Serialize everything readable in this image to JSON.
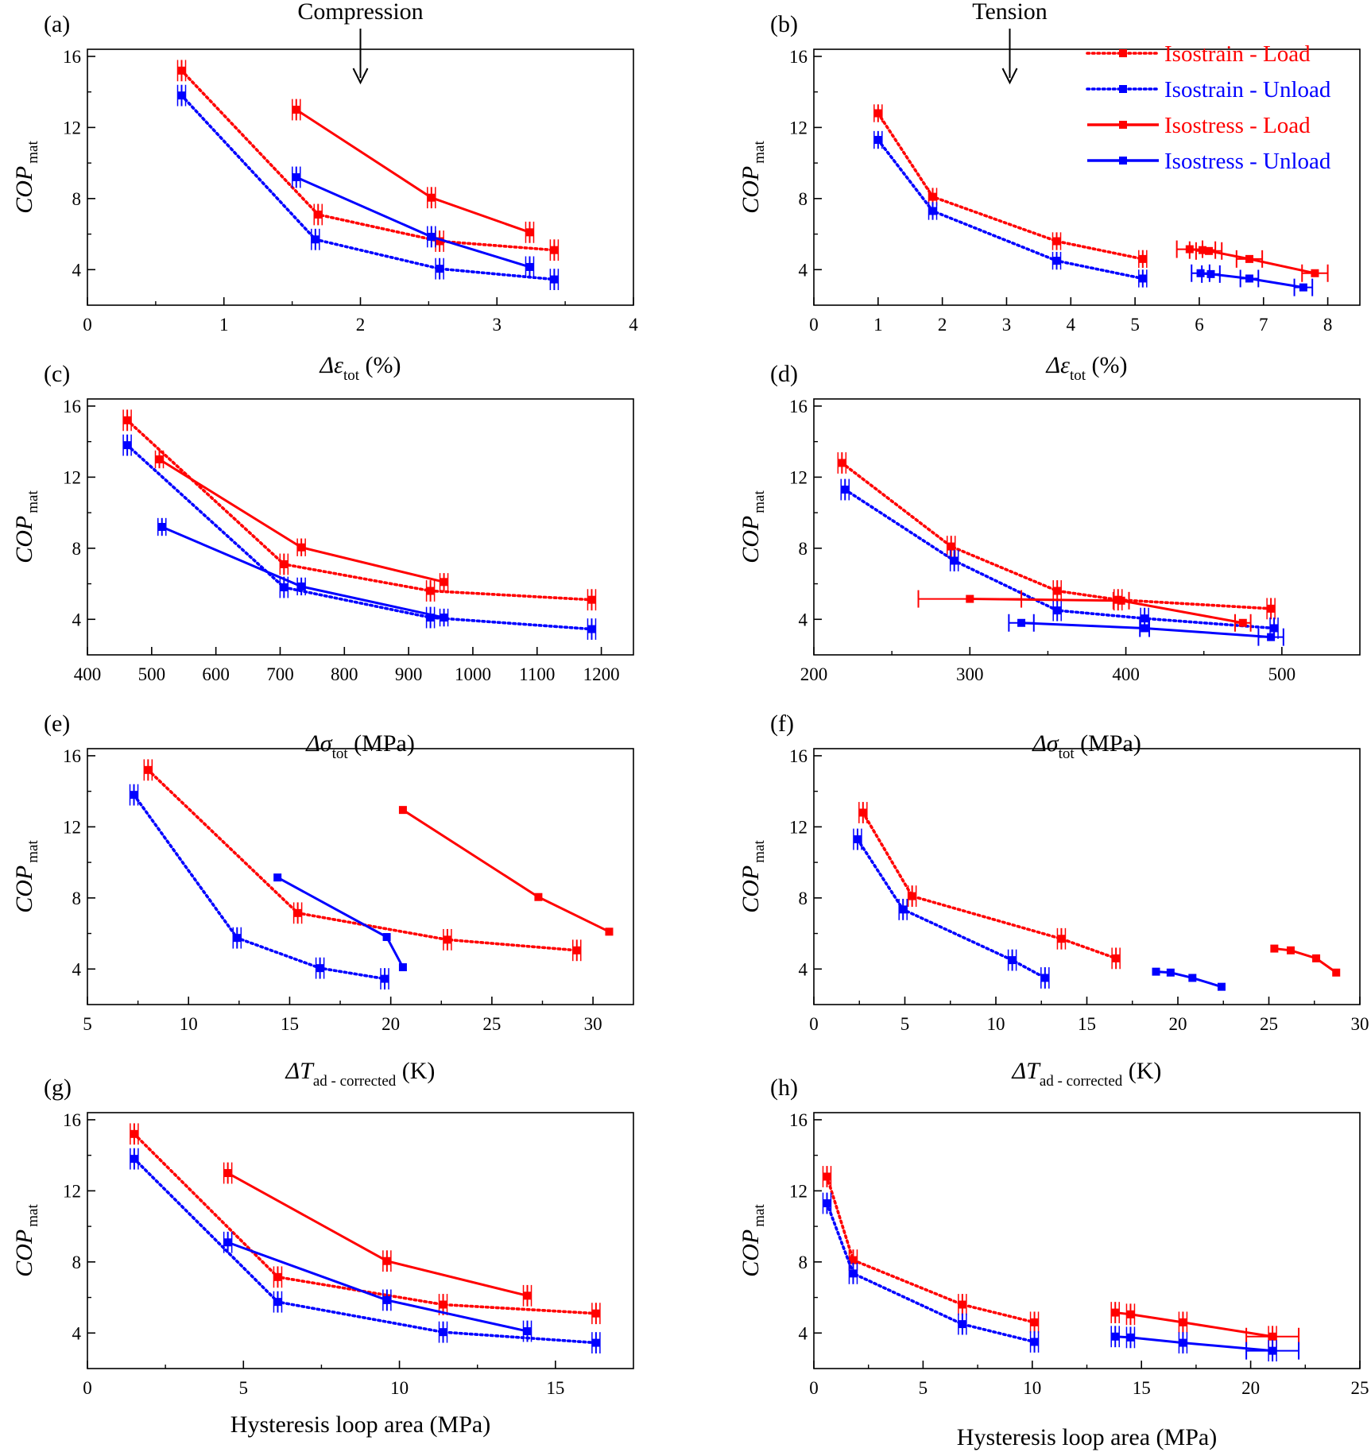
{
  "colors": {
    "load": "#ff0000",
    "unload": "#0000ff",
    "axis": "#000000"
  },
  "legend": {
    "entries": [
      {
        "label": "Isostrain - Load",
        "color": "#ff0000",
        "style": "dotted"
      },
      {
        "label": "Isostrain - Unload",
        "color": "#0000ff",
        "style": "dotted"
      },
      {
        "label": "Isostress - Load",
        "color": "#ff0000",
        "style": "solid"
      },
      {
        "label": "Isostress - Unload",
        "color": "#0000ff",
        "style": "solid"
      }
    ]
  },
  "chart_data": [
    {
      "panel": "(a)",
      "type": "line",
      "annotation": "Compression",
      "annotation_x": 2.0,
      "ylabel": "COP",
      "ylabel_sub": "mat",
      "xlabel": "Δε",
      "xlabel_italic": true,
      "xlabel_sub": "tot",
      "xlabel_suffix": " (%)",
      "xlim": [
        0,
        4
      ],
      "xticks": [
        0,
        1,
        2,
        3,
        4
      ],
      "minor_x": true,
      "ylim": [
        2,
        16.4
      ],
      "yticks": [
        4,
        8,
        12,
        16
      ],
      "series": [
        {
          "color": "load",
          "style": "dotted",
          "x": [
            0.69,
            1.69,
            2.58,
            3.42
          ],
          "y": [
            15.2,
            7.1,
            5.6,
            5.1
          ],
          "err_y": 0.6
        },
        {
          "color": "unload",
          "style": "dotted",
          "x": [
            0.69,
            1.67,
            2.58,
            3.42
          ],
          "y": [
            13.8,
            5.7,
            4.05,
            3.45
          ],
          "err_y": 0.6
        },
        {
          "color": "load",
          "style": "solid",
          "x": [
            1.53,
            2.52,
            3.24
          ],
          "y": [
            13.0,
            8.05,
            6.1
          ],
          "err_y": 0.6
        },
        {
          "color": "unload",
          "style": "solid",
          "x": [
            1.53,
            2.52,
            3.24
          ],
          "y": [
            9.2,
            5.85,
            4.15
          ],
          "err_y": 0.6
        }
      ]
    },
    {
      "panel": "(b)",
      "type": "line",
      "annotation": "Tension",
      "annotation_x": 3.05,
      "ylabel": "COP",
      "ylabel_sub": "mat",
      "xlabel": "Δε",
      "xlabel_italic": true,
      "xlabel_sub": "tot",
      "xlabel_suffix": " (%)",
      "xlim": [
        0,
        8.5
      ],
      "xticks": [
        0,
        1,
        2,
        3,
        4,
        5,
        6,
        7,
        8
      ],
      "minor_x": false,
      "ylim": [
        2,
        16.4
      ],
      "yticks": [
        4,
        8,
        12,
        16
      ],
      "legend": true,
      "series": [
        {
          "color": "load",
          "style": "dotted",
          "x": [
            1.0,
            1.85,
            3.78,
            5.12
          ],
          "y": [
            12.8,
            8.1,
            5.6,
            4.6
          ],
          "err_y": 0.5
        },
        {
          "color": "unload",
          "style": "dotted",
          "x": [
            1.0,
            1.85,
            3.78,
            5.12
          ],
          "y": [
            11.3,
            7.3,
            4.5,
            3.5
          ],
          "err_y": 0.5
        },
        {
          "color": "load",
          "style": "solid",
          "x": [
            5.85,
            6.05,
            6.15,
            6.78,
            7.8
          ],
          "y": [
            5.15,
            5.1,
            5.05,
            4.6,
            3.8
          ],
          "err_x": 0.2
        },
        {
          "color": "unload",
          "style": "solid",
          "x": [
            6.02,
            6.18,
            6.78,
            7.62
          ],
          "y": [
            3.8,
            3.75,
            3.5,
            3.0
          ],
          "err_x": 0.14
        }
      ]
    },
    {
      "panel": "(c)",
      "type": "line",
      "ylabel": "COP",
      "ylabel_sub": "mat",
      "xlabel": "Δσ",
      "xlabel_italic": true,
      "xlabel_sub": "tot",
      "xlabel_suffix": " (MPa)",
      "xlim": [
        400,
        1250
      ],
      "xticks": [
        400,
        500,
        600,
        700,
        800,
        900,
        1000,
        1100,
        1200
      ],
      "minor_x": false,
      "ylim": [
        2,
        16.4
      ],
      "yticks": [
        4,
        8,
        12,
        16
      ],
      "series": [
        {
          "color": "load",
          "style": "dotted",
          "x": [
            462,
            706,
            934,
            1185
          ],
          "y": [
            15.2,
            7.1,
            5.6,
            5.1
          ],
          "err_y": 0.6
        },
        {
          "color": "unload",
          "style": "dotted",
          "x": [
            462,
            706,
            934,
            1185
          ],
          "y": [
            13.8,
            5.8,
            4.1,
            3.45
          ],
          "err_y": 0.6
        },
        {
          "color": "load",
          "style": "solid",
          "x": [
            512,
            733,
            955
          ],
          "y": [
            13.0,
            8.05,
            6.1
          ],
          "err_y": 0.5
        },
        {
          "color": "unload",
          "style": "solid",
          "x": [
            516,
            733,
            955
          ],
          "y": [
            9.2,
            5.85,
            4.1
          ],
          "err_y": 0.5
        }
      ]
    },
    {
      "panel": "(d)",
      "type": "line",
      "ylabel": "COP",
      "ylabel_sub": "mat",
      "xlabel": "Δσ",
      "xlabel_italic": true,
      "xlabel_sub": "tot",
      "xlabel_suffix": " (MPa)",
      "xlim": [
        200,
        550
      ],
      "xticks": [
        200,
        300,
        400,
        500
      ],
      "minor_x": true,
      "ylim": [
        2,
        16.4
      ],
      "yticks": [
        4,
        8,
        12,
        16
      ],
      "series": [
        {
          "color": "load",
          "style": "dotted",
          "x": [
            218,
            288,
            356,
            395,
            493
          ],
          "y": [
            12.8,
            8.1,
            5.6,
            5.1,
            4.6
          ],
          "err_y": 0.6
        },
        {
          "color": "unload",
          "style": "dotted",
          "x": [
            220,
            290,
            356,
            412,
            495
          ],
          "y": [
            11.3,
            7.3,
            4.5,
            4.05,
            3.5
          ],
          "err_y": 0.6
        },
        {
          "color": "load",
          "style": "solid",
          "x": [
            300,
            397,
            475
          ],
          "y": [
            5.15,
            5.05,
            3.8
          ],
          "err_x_list": [
            33,
            5,
            5
          ]
        },
        {
          "color": "unload",
          "style": "solid",
          "x": [
            333,
            412,
            493
          ],
          "y": [
            3.8,
            3.5,
            3.0
          ],
          "err_x_list": [
            8,
            3,
            8
          ]
        }
      ]
    },
    {
      "panel": "(e)",
      "type": "line",
      "ylabel": "COP",
      "ylabel_sub": "mat",
      "xlabel": "ΔT",
      "xlabel_italic": true,
      "xlabel_sub": "ad - corrected",
      "xlabel_suffix": " (K)",
      "xlim": [
        5,
        32
      ],
      "xticks": [
        5,
        10,
        15,
        20,
        25,
        30
      ],
      "minor_x": true,
      "ylim": [
        2,
        16.4
      ],
      "yticks": [
        4,
        8,
        12,
        16
      ],
      "series": [
        {
          "color": "load",
          "style": "dotted",
          "x": [
            8.0,
            15.4,
            22.8,
            29.2
          ],
          "y": [
            15.2,
            7.15,
            5.65,
            5.05
          ],
          "err_y": 0.6
        },
        {
          "color": "unload",
          "style": "dotted",
          "x": [
            7.3,
            12.4,
            16.5,
            19.7
          ],
          "y": [
            13.8,
            5.75,
            4.05,
            3.45
          ],
          "err_y": 0.6
        },
        {
          "color": "load",
          "style": "solid",
          "x": [
            20.6,
            27.3,
            30.8
          ],
          "y": [
            12.95,
            8.05,
            6.1
          ]
        },
        {
          "color": "unload",
          "style": "solid",
          "x": [
            14.4,
            19.8,
            20.6
          ],
          "y": [
            9.15,
            5.8,
            4.1
          ]
        }
      ]
    },
    {
      "panel": "(f)",
      "type": "line",
      "ylabel": "COP",
      "ylabel_sub": "mat",
      "xlabel": "ΔT",
      "xlabel_italic": true,
      "xlabel_sub": "ad - corrected",
      "xlabel_suffix": " (K)",
      "xlim": [
        0,
        30
      ],
      "xticks": [
        0,
        5,
        10,
        15,
        20,
        25,
        30
      ],
      "minor_x": true,
      "ylim": [
        2,
        16.4
      ],
      "yticks": [
        4,
        8,
        12,
        16
      ],
      "series": [
        {
          "color": "load",
          "style": "dotted",
          "x": [
            2.7,
            5.4,
            13.6,
            16.6
          ],
          "y": [
            12.8,
            8.1,
            5.7,
            4.6
          ],
          "err_y": 0.6
        },
        {
          "color": "unload",
          "style": "dotted",
          "x": [
            2.4,
            4.9,
            10.9,
            12.7
          ],
          "y": [
            11.3,
            7.35,
            4.5,
            3.5
          ],
          "err_y": 0.6
        },
        {
          "color": "load",
          "style": "solid",
          "x": [
            25.3,
            26.2,
            27.6,
            28.7
          ],
          "y": [
            5.15,
            5.05,
            4.6,
            3.8
          ]
        },
        {
          "color": "unload",
          "style": "solid",
          "x": [
            18.8,
            19.6,
            20.8,
            22.4
          ],
          "y": [
            3.85,
            3.8,
            3.5,
            3.0
          ]
        }
      ]
    },
    {
      "panel": "(g)",
      "type": "line",
      "ylabel": "COP",
      "ylabel_sub": "mat",
      "xlabel": "Hysteresis loop area (MPa)",
      "xlabel_italic": false,
      "xlabel_sub": "",
      "xlabel_suffix": "",
      "xlim": [
        0,
        17.5
      ],
      "xticks": [
        0,
        5,
        10,
        15
      ],
      "minor_x": true,
      "ylim": [
        2,
        16.4
      ],
      "yticks": [
        4,
        8,
        12,
        16
      ],
      "series": [
        {
          "color": "load",
          "style": "dotted",
          "x": [
            1.5,
            6.1,
            11.4,
            16.3
          ],
          "y": [
            15.2,
            7.15,
            5.6,
            5.1
          ],
          "err_y": 0.6
        },
        {
          "color": "unload",
          "style": "dotted",
          "x": [
            1.5,
            6.1,
            11.4,
            16.3
          ],
          "y": [
            13.8,
            5.75,
            4.05,
            3.45
          ],
          "err_y": 0.6
        },
        {
          "color": "load",
          "style": "solid",
          "x": [
            4.5,
            9.6,
            14.1
          ],
          "y": [
            13.0,
            8.05,
            6.1
          ],
          "err_y": 0.6
        },
        {
          "color": "unload",
          "style": "solid",
          "x": [
            4.5,
            9.6,
            14.1
          ],
          "y": [
            9.1,
            5.85,
            4.1
          ],
          "err_y": 0.6
        }
      ]
    },
    {
      "panel": "(h)",
      "type": "line",
      "ylabel": "COP",
      "ylabel_sub": "mat",
      "xlabel": "Hysteresis loop area (MPa)",
      "xlabel_italic": false,
      "xlabel_sub": "",
      "xlabel_suffix": "",
      "xlim": [
        0,
        25
      ],
      "xticks": [
        0,
        5,
        10,
        15,
        20,
        25
      ],
      "minor_x": true,
      "ylim": [
        2,
        16.4
      ],
      "yticks": [
        4,
        8,
        12,
        16
      ],
      "series": [
        {
          "color": "load",
          "style": "dotted",
          "x": [
            0.6,
            1.8,
            6.8,
            10.1
          ],
          "y": [
            12.8,
            8.1,
            5.6,
            4.6
          ],
          "err_y": 0.6
        },
        {
          "color": "unload",
          "style": "dotted",
          "x": [
            0.6,
            1.8,
            6.8,
            10.1
          ],
          "y": [
            11.3,
            7.35,
            4.5,
            3.5
          ],
          "err_y": 0.6
        },
        {
          "color": "load",
          "style": "solid",
          "x": [
            13.8,
            14.5,
            16.9,
            21.0
          ],
          "y": [
            5.15,
            5.05,
            4.6,
            3.8
          ],
          "err_y": 0.6,
          "err_x_last": 1.2
        },
        {
          "color": "unload",
          "style": "solid",
          "x": [
            13.8,
            14.5,
            16.9,
            21.0
          ],
          "y": [
            3.8,
            3.75,
            3.45,
            3.0
          ],
          "err_y": 0.6,
          "err_x_last": 1.2
        }
      ]
    }
  ]
}
